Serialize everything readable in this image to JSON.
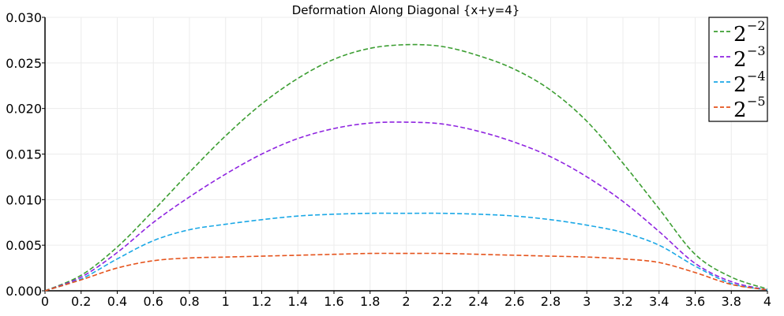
{
  "chart_data": {
    "type": "line",
    "title": "Deformation Along Diagonal {x+y=4}",
    "xlabel": "",
    "ylabel": "",
    "xlim": [
      0,
      4
    ],
    "ylim": [
      0,
      0.03
    ],
    "grid": true,
    "legend_position": "top-right",
    "x_ticks": [
      0,
      0.2,
      0.4,
      0.6,
      0.8,
      1,
      1.2,
      1.4,
      1.6,
      1.8,
      2,
      2.2,
      2.4,
      2.6,
      2.8,
      3,
      3.2,
      3.4,
      3.6,
      3.8,
      4
    ],
    "x_tick_labels": [
      "0",
      "0.2",
      "0.4",
      "0.6",
      "0.8",
      "1",
      "1.2",
      "1.4",
      "1.6",
      "1.8",
      "2",
      "2.2",
      "2.4",
      "2.6",
      "2.8",
      "3",
      "3.2",
      "3.4",
      "3.6",
      "3.8",
      "4"
    ],
    "y_ticks": [
      0,
      0.005,
      0.01,
      0.015,
      0.02,
      0.025,
      0.03
    ],
    "y_tick_labels": [
      "0.000",
      "0.005",
      "0.010",
      "0.015",
      "0.020",
      "0.025",
      "0.030"
    ],
    "x": [
      0,
      0.2,
      0.4,
      0.6,
      0.8,
      1,
      1.2,
      1.4,
      1.6,
      1.8,
      2,
      2.2,
      2.4,
      2.6,
      2.8,
      3,
      3.2,
      3.4,
      3.6,
      3.8,
      4
    ],
    "series": [
      {
        "name": "2^-2",
        "base": "2",
        "exponent": "−2",
        "color": "#3c9e32",
        "values": [
          0,
          0.0017,
          0.0048,
          0.0088,
          0.013,
          0.017,
          0.0205,
          0.0233,
          0.0254,
          0.0266,
          0.027,
          0.0268,
          0.0258,
          0.0243,
          0.022,
          0.0186,
          0.014,
          0.009,
          0.004,
          0.0015,
          0.0002
        ]
      },
      {
        "name": "2^-3",
        "base": "2",
        "exponent": "−3",
        "color": "#8f24e0",
        "values": [
          0,
          0.0015,
          0.0042,
          0.0075,
          0.0103,
          0.0128,
          0.015,
          0.0167,
          0.0178,
          0.0184,
          0.0185,
          0.0183,
          0.0175,
          0.0163,
          0.0147,
          0.0125,
          0.0098,
          0.0065,
          0.003,
          0.001,
          0.0001
        ]
      },
      {
        "name": "2^-4",
        "base": "2",
        "exponent": "−4",
        "color": "#1ba8e6",
        "values": [
          0,
          0.0013,
          0.0035,
          0.0055,
          0.0067,
          0.0073,
          0.0078,
          0.0082,
          0.0084,
          0.0085,
          0.0085,
          0.0085,
          0.0084,
          0.0082,
          0.0078,
          0.0072,
          0.0064,
          0.005,
          0.0027,
          0.0008,
          0.0001
        ]
      },
      {
        "name": "2^-5",
        "base": "2",
        "exponent": "−5",
        "color": "#e5531c",
        "values": [
          0,
          0.0012,
          0.0025,
          0.0033,
          0.0036,
          0.0037,
          0.0038,
          0.0039,
          0.004,
          0.0041,
          0.0041,
          0.0041,
          0.004,
          0.0039,
          0.0038,
          0.0037,
          0.0035,
          0.0031,
          0.002,
          0.0007,
          0.0001
        ]
      }
    ]
  }
}
